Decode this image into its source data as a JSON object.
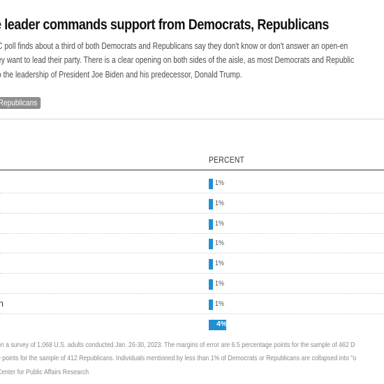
{
  "title": "e leader commands support from Democrats, Republicans",
  "subtitle_lines": [
    "C poll finds about a third of both Democrats and Republicans say they don't know or don't answer an open-en",
    "ey want to lead their party. There is a clear opening on both sides of the aisle, as most Democrats and Republic",
    "o the leadership of President Joe Biden and his predecessor, Donald Trump."
  ],
  "tab_label": "Republicans",
  "column_header": "PERCENT",
  "chart_data": {
    "type": "bar",
    "categories": [
      "",
      "",
      "",
      "",
      "",
      "",
      "n",
      ""
    ],
    "values": [
      1,
      1,
      1,
      1,
      1,
      1,
      1,
      4
    ],
    "value_labels": [
      "1%",
      "1%",
      "1%",
      "1%",
      "1%",
      "1%",
      "1%",
      "4%"
    ],
    "xlabel": "PERCENT",
    "bar_color": "#1f8fd6"
  },
  "footnote_lines": [
    "on a survey of 1,068 U.S. adults conducted Jan. 26-30, 2023. The margins of error are 6.5 percentage points for the sample of 462 D",
    "e points for the sample of 412 Republicans. Individuals mentioned by less than 1% of Democrats or Republicans are collapsed into \"o",
    "Center for Public Affairs Research"
  ]
}
